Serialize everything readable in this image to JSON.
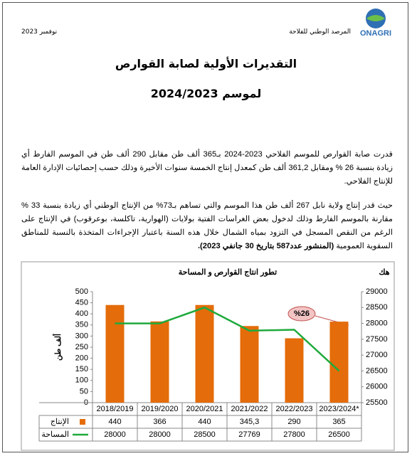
{
  "header": {
    "logo": "ONAGRI",
    "org": "المرصد الوطني للفلاحة",
    "date": "نوفمبر 2023"
  },
  "title": "التقديرات الأولية لصابة القوارص",
  "subtitle": "لموسم 2024/2023",
  "paragraphs": [
    {
      "text": "قدرت صابة القوارص للموسم الفلاحي 2023-2024 بـ365 ألف طن مقابل 290 ألف طن في الموسم الفارط أي زيادة بنسبة 26 % ومقابل 361,2 ألف طن كمعدل إنتاج الخمسة سنوات الأخيرة وذلك حسب إحصائيات الإدارة العامة للإنتاج الفلاحي."
    },
    {
      "text": "حيث قدر إنتاج ولاية نابل 267 ألف طن هذا الموسم والتي تساهم بـ73% من الإنتاج الوطني أي زيادة بنسبة 33 % مقارنة بالموسم الفارط وذلك لدخول بعض الغراسات الفتية بولايات (الهوارية، تاكلسة، بوعرقوب) في الإنتاج على الرغم من النقص المسجل في التزود بمياه الشمال خلال هذه السنة باعتبار الإجراءات المتخذة بالنسبة للمناطق السقوية العمومية",
      "bold": "(المنشور عدد587 بتاريخ 30 جانفي 2023)."
    }
  ],
  "chart_data": {
    "type": "bar",
    "title": "تطور انتاج القوارص و المساحة",
    "y_label": "ألف طن",
    "y2_label": "هك",
    "annotation": "%26",
    "categories": [
      "2018/2019",
      "2019/2020",
      "2020/2021",
      "2021/2022",
      "2022/2023",
      "2023/2024*"
    ],
    "series": [
      {
        "name": "الإنتاج",
        "type": "bar",
        "color": "#e46c0a",
        "values": [
          440,
          366,
          440,
          345.3,
          290,
          365
        ],
        "value_labels": [
          "440",
          "366",
          "440",
          "345,3",
          "290",
          "365"
        ]
      },
      {
        "name": "المساحة",
        "type": "line",
        "axis": "y2",
        "color": "#1faa3c",
        "values": [
          28000,
          28000,
          28500,
          27769,
          27800,
          26500
        ]
      }
    ],
    "ylim": [
      0,
      500
    ],
    "yticks": [
      0,
      50,
      100,
      150,
      200,
      250,
      300,
      350,
      400,
      450,
      500
    ],
    "y2lim": [
      25500,
      29000
    ],
    "y2ticks": [
      25500,
      26000,
      26500,
      27000,
      27500,
      28000,
      28500,
      29000
    ],
    "grid": false
  }
}
